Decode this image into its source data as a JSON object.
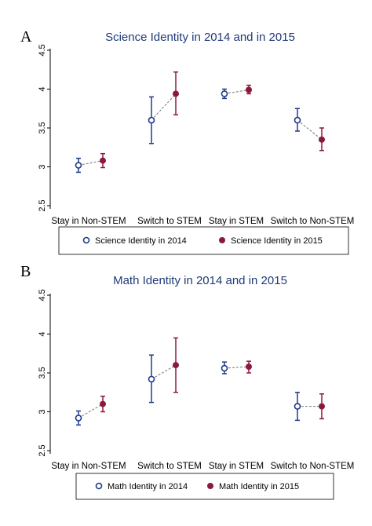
{
  "chart_data": [
    {
      "panel_letter": "A",
      "type": "scatter",
      "title": "Science Identity in 2014 and in 2015",
      "categories": [
        "Stay in Non-STEM",
        "Switch to STEM",
        "Stay in STEM",
        "Switch to Non-STEM"
      ],
      "y_ticks": [
        "2.5",
        "3",
        "3.5",
        "4",
        "4.5"
      ],
      "ylim": [
        2.5,
        4.5
      ],
      "grid": false,
      "legend_position": "bottom",
      "series": [
        {
          "name": "Science Identity in 2014",
          "color": "#1f3a8a",
          "marker": "hollow-circle",
          "values": [
            3.02,
            3.6,
            3.94,
            3.6
          ],
          "ci_low": [
            2.93,
            3.3,
            3.88,
            3.46
          ],
          "ci_high": [
            3.11,
            3.9,
            4.0,
            3.75
          ]
        },
        {
          "name": "Science Identity in 2015",
          "color": "#8b1a3a",
          "marker": "filled-circle",
          "values": [
            3.08,
            3.94,
            3.99,
            3.35
          ],
          "ci_low": [
            2.99,
            3.67,
            3.94,
            3.21
          ],
          "ci_high": [
            3.17,
            4.22,
            4.05,
            3.5
          ]
        }
      ]
    },
    {
      "panel_letter": "B",
      "type": "scatter",
      "title": "Math Identity in 2014 and in 2015",
      "categories": [
        "Stay in Non-STEM",
        "Switch to STEM",
        "Stay in STEM",
        "Switch to Non-STEM"
      ],
      "y_ticks": [
        "2.5",
        "3",
        "3.5",
        "4",
        "4.5"
      ],
      "ylim": [
        2.5,
        4.5
      ],
      "grid": false,
      "legend_position": "bottom",
      "series": [
        {
          "name": "Math Identity in 2014",
          "color": "#1f3a8a",
          "marker": "hollow-circle",
          "values": [
            2.92,
            3.42,
            3.56,
            3.07
          ],
          "ci_low": [
            2.83,
            3.12,
            3.49,
            2.89
          ],
          "ci_high": [
            3.01,
            3.73,
            3.64,
            3.25
          ]
        },
        {
          "name": "Math Identity in 2015",
          "color": "#8b1a3a",
          "marker": "filled-circle",
          "values": [
            3.1,
            3.6,
            3.58,
            3.07
          ],
          "ci_low": [
            3.0,
            3.25,
            3.5,
            2.91
          ],
          "ci_high": [
            3.2,
            3.95,
            3.65,
            3.23
          ]
        }
      ]
    }
  ]
}
